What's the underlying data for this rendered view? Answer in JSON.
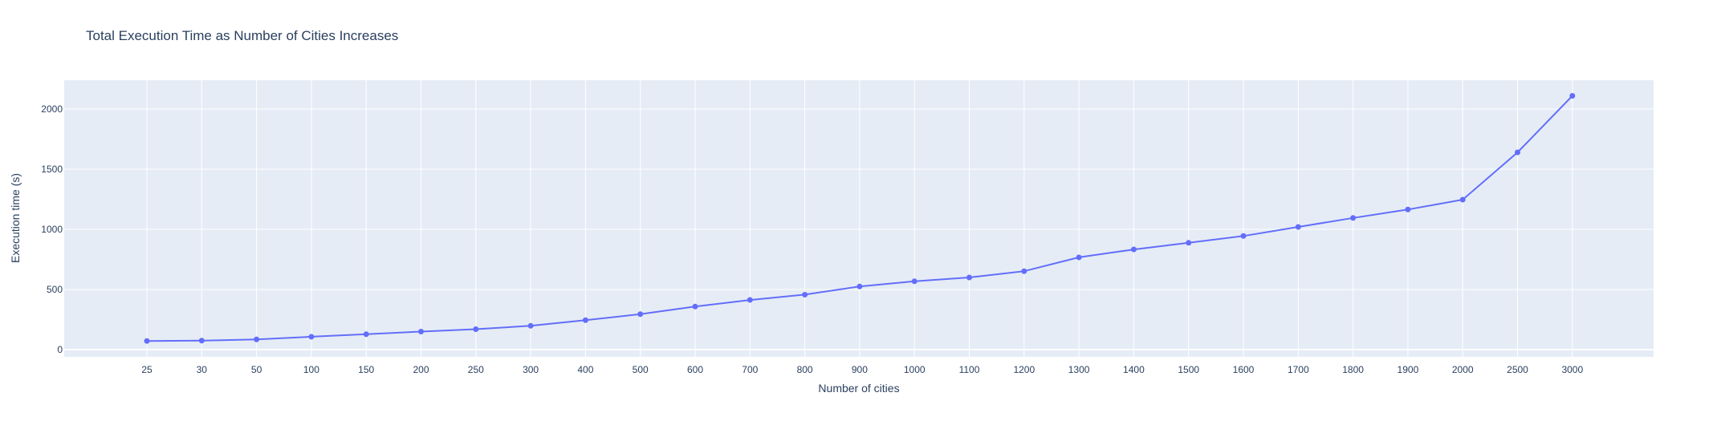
{
  "chart_data": {
    "type": "line",
    "title": "Total Execution Time as Number of Cities Increases",
    "xlabel": "Number of cities",
    "ylabel": "Execution time (s)",
    "categories": [
      "25",
      "30",
      "50",
      "100",
      "150",
      "200",
      "250",
      "300",
      "400",
      "500",
      "600",
      "700",
      "800",
      "900",
      "1000",
      "1100",
      "1200",
      "1300",
      "1400",
      "1500",
      "1600",
      "1700",
      "1800",
      "1900",
      "2000",
      "2500",
      "3000"
    ],
    "series": [
      {
        "values": [
          72,
          75,
          85,
          107,
          128,
          150,
          170,
          198,
          245,
          295,
          358,
          413,
          457,
          525,
          568,
          600,
          652,
          767,
          833,
          888,
          945,
          1020,
          1095,
          1165,
          1247,
          1640,
          2110
        ]
      }
    ],
    "ylim": [
      -60,
      2240
    ],
    "yticks": [
      0,
      500,
      1000,
      1500,
      2000
    ],
    "grid": true,
    "x_axis_type": "category",
    "colors": {
      "line": "#636efa",
      "plot_bg": "#e5ecf6",
      "paper_bg": "#ffffff",
      "text": "#2a3f5f"
    }
  }
}
